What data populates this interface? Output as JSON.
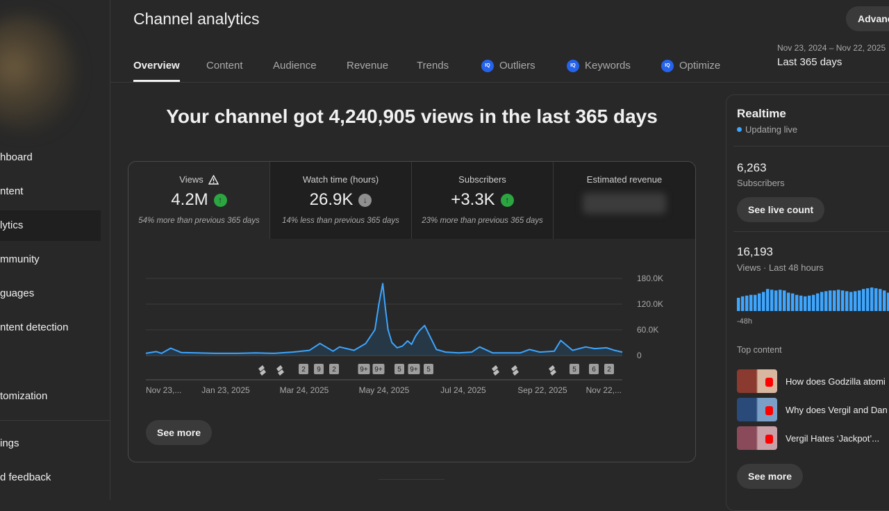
{
  "sidebar": {
    "items": [
      {
        "label": "hboard",
        "top": 205
      },
      {
        "label": "ntent",
        "top": 254
      },
      {
        "label": "lytics",
        "top": 303,
        "active": true
      },
      {
        "label": "mmunity",
        "top": 352
      },
      {
        "label": "guages",
        "top": 401
      },
      {
        "label": "ntent detection",
        "top": 450
      },
      {
        "label": "tomization",
        "top": 549
      },
      {
        "label": "ings",
        "top": 617
      },
      {
        "label": "d feedback",
        "top": 666
      }
    ]
  },
  "header": {
    "title": "Channel analytics",
    "advanced_label": "Advanc",
    "date_range": "Nov 23, 2024 – Nov 22, 2025",
    "period": "Last 365 days"
  },
  "tabs": [
    {
      "label": "Overview",
      "active": true
    },
    {
      "label": "Content"
    },
    {
      "label": "Audience"
    },
    {
      "label": "Revenue"
    },
    {
      "label": "Trends"
    },
    {
      "label": "Outliers",
      "icon": "ext-icon",
      "icon_text": "IQ"
    },
    {
      "label": "Keywords",
      "icon": "ext-icon",
      "icon_text": "IQ"
    },
    {
      "label": "Optimize",
      "icon": "ext-icon",
      "icon_text": "IQ"
    }
  ],
  "main": {
    "headline": "Your channel got 4,240,905 views in the last 365 days",
    "metrics": [
      {
        "label": "Views",
        "value": "4.2M",
        "trend": "up",
        "sub": "54% more than previous 365 days",
        "warning": true
      },
      {
        "label": "Watch time (hours)",
        "value": "26.9K",
        "trend": "down",
        "sub": "14% less than previous 365 days"
      },
      {
        "label": "Subscribers",
        "value": "+3.3K",
        "trend": "up",
        "sub": "23% more than previous 365 days"
      },
      {
        "label": "Estimated revenue",
        "value": "",
        "blurred": true
      }
    ],
    "see_more_label": "See more",
    "colors": {
      "line": "#3ea6ff",
      "fill": "#263a4a"
    }
  },
  "chart_data": {
    "type": "area",
    "title": "",
    "xlabel": "",
    "ylabel": "",
    "y_ticks": [
      "180.0K",
      "120.0K",
      "60.0K",
      "0"
    ],
    "ylim": [
      0,
      180000
    ],
    "x_tick_labels": [
      "Nov 23,...",
      "Jan 23, 2025",
      "Mar 24, 2025",
      "May 24, 2025",
      "Jul 24, 2025",
      "Sep 22, 2025",
      "Nov 22,..."
    ],
    "x": [
      "2024-11-23",
      "2024-12-01",
      "2024-12-05",
      "2024-12-12",
      "2024-12-20",
      "2025-01-01",
      "2025-01-15",
      "2025-02-01",
      "2025-02-15",
      "2025-03-01",
      "2025-03-15",
      "2025-03-28",
      "2025-04-05",
      "2025-04-15",
      "2025-04-20",
      "2025-05-01",
      "2025-05-10",
      "2025-05-17",
      "2025-05-20",
      "2025-05-23",
      "2025-05-25",
      "2025-05-27",
      "2025-05-30",
      "2025-06-03",
      "2025-06-07",
      "2025-06-11",
      "2025-06-14",
      "2025-06-17",
      "2025-06-20",
      "2025-06-24",
      "2025-06-28",
      "2025-07-03",
      "2025-07-10",
      "2025-07-20",
      "2025-07-30",
      "2025-08-05",
      "2025-08-15",
      "2025-08-25",
      "2025-09-05",
      "2025-09-12",
      "2025-09-20",
      "2025-10-01",
      "2025-10-06",
      "2025-10-15",
      "2025-10-25",
      "2025-11-01",
      "2025-11-10",
      "2025-11-16",
      "2025-11-22"
    ],
    "values": [
      5000,
      9000,
      5000,
      17000,
      7000,
      6000,
      5000,
      5000,
      6000,
      5000,
      8000,
      12000,
      28000,
      10000,
      20000,
      12000,
      28000,
      60000,
      120000,
      168000,
      110000,
      60000,
      30000,
      18000,
      22000,
      34000,
      26000,
      45000,
      58000,
      70000,
      45000,
      14000,
      8000,
      6000,
      8000,
      20000,
      6000,
      6000,
      6000,
      14000,
      8000,
      10000,
      35000,
      12000,
      20000,
      16000,
      18000,
      12000,
      8000
    ],
    "annotations": [
      "S",
      "S",
      "2",
      "9",
      "2",
      "9+",
      "9+",
      "5",
      "9+",
      "5",
      "S",
      "S",
      "S",
      "5",
      "6",
      "2"
    ],
    "grid": true
  },
  "realtime": {
    "title": "Realtime",
    "status": "Updating live",
    "subs_value": "6,263",
    "subs_label": "Subscribers",
    "live_count_label": "See live count",
    "views_value": "16,193",
    "views_label": "Views · Last 48 hours",
    "mini_axis_label": "-48h",
    "mini_values": [
      18,
      20,
      21,
      22,
      22,
      24,
      26,
      30,
      29,
      28,
      29,
      28,
      25,
      24,
      22,
      21,
      20,
      21,
      22,
      24,
      26,
      27,
      28,
      28,
      29,
      28,
      27,
      26,
      27,
      28,
      30,
      31,
      32,
      31,
      30,
      28,
      25,
      22,
      20,
      19
    ],
    "top_content_label": "Top content",
    "top_content": [
      {
        "title": "How does Godzilla atomi",
        "c1": "#8a3a2e",
        "c2": "#d9b6a0"
      },
      {
        "title": "Why does Vergil and Dan",
        "c1": "#2a4a7a",
        "c2": "#7aa0c8"
      },
      {
        "title": "Vergil Hates ‘Jackpot’...",
        "c1": "#8a4a5a",
        "c2": "#c8a0a8"
      }
    ],
    "see_more_label": "See more"
  }
}
